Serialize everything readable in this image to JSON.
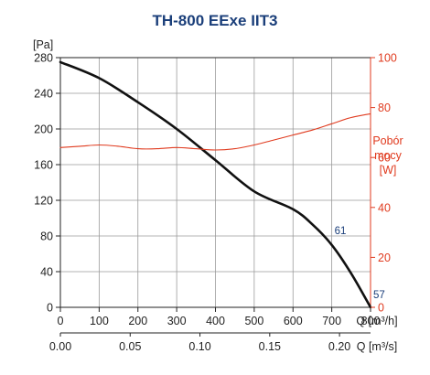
{
  "chart_data": {
    "type": "line",
    "title": "TH-800 EExe IIT3",
    "y_unit": "[Pa]",
    "y_ticks": [
      0,
      40,
      80,
      120,
      160,
      200,
      240,
      280
    ],
    "ylim": [
      0,
      280
    ],
    "x_unit": "Q [m³/h]",
    "x_ticks": [
      0,
      100,
      200,
      300,
      400,
      500,
      600,
      700,
      800
    ],
    "xlim": [
      0,
      800
    ],
    "x2_unit": "Q [m³/s]",
    "x2_ticks": [
      "0.00",
      "0.05",
      "0.10",
      "0.15",
      "0.20"
    ],
    "x2_tick_values": [
      0,
      0.05,
      0.1,
      0.15,
      0.2
    ],
    "y2_unit_lines": [
      "Pobór",
      "mocy",
      "[W]"
    ],
    "y2_ticks": [
      0,
      20,
      40,
      60,
      80,
      100
    ],
    "y2lim": [
      0,
      100
    ],
    "grid": true,
    "series": [
      {
        "axis": "left",
        "color": "#111111",
        "x": [
          0,
          100,
          200,
          300,
          400,
          500,
          600,
          650,
          700,
          750,
          800
        ],
        "y": [
          275,
          257,
          230,
          200,
          165,
          130,
          110,
          93,
          70,
          38,
          0
        ]
      },
      {
        "axis": "right",
        "color": "#e03a1e",
        "x": [
          0,
          50,
          100,
          150,
          200,
          250,
          300,
          350,
          400,
          450,
          500,
          550,
          600,
          650,
          700,
          750,
          800
        ],
        "y": [
          64,
          64.5,
          65,
          64.5,
          63.5,
          63.5,
          64,
          63.5,
          63,
          63.5,
          65,
          67,
          69,
          71,
          73.5,
          76,
          77.5
        ]
      }
    ],
    "annotations": [
      {
        "text": "61",
        "x": 700,
        "y": 80
      },
      {
        "text": "57",
        "x": 800,
        "y": 8
      }
    ]
  }
}
